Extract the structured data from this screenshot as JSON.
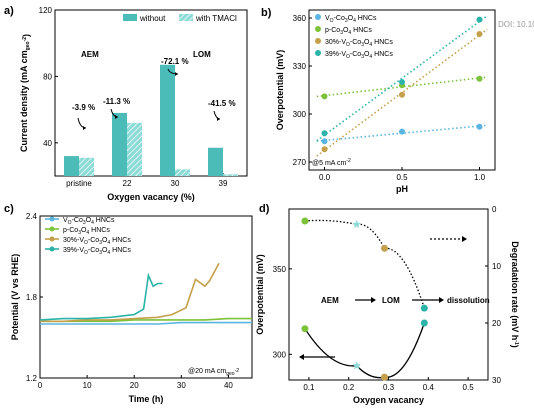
{
  "watermark": "DOI: 10.10",
  "colors": {
    "teal": "#4bbcb8",
    "teal_light": "#8ddbd6",
    "blue": "#5ab5e0",
    "green": "#7cc23a",
    "tan": "#c5a04a",
    "cyan": "#2bb3a8"
  },
  "chart_data": [
    {
      "panel": "a)",
      "type": "bar",
      "categories": [
        "pristine",
        "22",
        "30",
        "39"
      ],
      "series": [
        {
          "name": "without",
          "values": [
            32,
            58,
            87,
            37
          ]
        },
        {
          "name": "with TMACl",
          "values": [
            31,
            52,
            24,
            21
          ]
        }
      ],
      "annotations": [
        "-3.9 %",
        "-11.3 %",
        "-72.1 %",
        "-41.5 %"
      ],
      "region_labels": [
        "AEM",
        "LOM"
      ],
      "xlabel": "Oxygen vacancy (%)",
      "ylabel": "Current density (mA cm",
      "ylabel_sub": "geo",
      "ylabel_sup": "-2",
      "ylabel_end": ")",
      "ylim": [
        20,
        120
      ],
      "yticks": [
        40,
        80,
        120
      ],
      "legend": "top"
    },
    {
      "panel": "b)",
      "type": "scatter",
      "xlabel": "pH",
      "ylabel": "Overpotential (mV)",
      "xlim": [
        -0.1,
        1.1
      ],
      "ylim": [
        265,
        365
      ],
      "xticks": [
        "0.0",
        "0.5",
        "1.0"
      ],
      "yticks": [
        270,
        300,
        330,
        360
      ],
      "note": "@5 mA cm",
      "note_sup": "-2",
      "series": [
        {
          "name": "V",
          "name_sub": "O",
          "name_rest": "-Co",
          "name_sub2": "3",
          "name_rest2": "O",
          "name_sub3": "4",
          "name_rest3": " HNCs",
          "x": [
            0,
            0.5,
            1.0
          ],
          "y": [
            283,
            289,
            292
          ]
        },
        {
          "name": "p-Co",
          "name_sub": "3",
          "name_rest": "O",
          "name_sub2": "4",
          "name_rest2": " HNCs",
          "name_sub3": "",
          "name_rest3": "",
          "x": [
            0,
            0.5,
            1.0
          ],
          "y": [
            311,
            318,
            322
          ]
        },
        {
          "name": "30%-V",
          "name_sub": "O",
          "name_rest": "-Co",
          "name_sub2": "3",
          "name_rest2": "O",
          "name_sub3": "4",
          "name_rest3": " HNCs",
          "x": [
            0,
            0.5,
            1.0
          ],
          "y": [
            278,
            312,
            350
          ]
        },
        {
          "name": "39%-V",
          "name_sub": "O",
          "name_rest": "-Co",
          "name_sub2": "3",
          "name_rest2": "O",
          "name_sub3": "4",
          "name_rest3": " HNCs",
          "x": [
            0,
            0.5,
            1.0
          ],
          "y": [
            288,
            320,
            359
          ]
        }
      ]
    },
    {
      "panel": "c)",
      "type": "line",
      "xlabel": "Time (h)",
      "ylabel": "Potential (V vs RHE)",
      "xlim": [
        0,
        45
      ],
      "ylim": [
        1.2,
        2.4
      ],
      "xticks": [
        0,
        10,
        20,
        30,
        40
      ],
      "yticks": [
        "1.2",
        "1.8",
        "2.4"
      ],
      "note": "@20 mA cm",
      "note_sub": "geo",
      "note_sup": "-2",
      "series": [
        {
          "name": "V",
          "name_sub": "O",
          "name_rest": "-Co",
          "name_sub2": "3",
          "name_rest2": "O",
          "name_sub3": "4",
          "name_rest3": " HNCs",
          "x": [
            0,
            5,
            10,
            15,
            20,
            25,
            30,
            35,
            40,
            45
          ],
          "y": [
            1.6,
            1.6,
            1.6,
            1.6,
            1.6,
            1.6,
            1.61,
            1.61,
            1.61,
            1.61
          ]
        },
        {
          "name": "p-Co",
          "name_sub": "3",
          "name_rest": "O",
          "name_sub2": "4",
          "name_rest2": " HNCs",
          "name_sub3": "",
          "name_rest3": "",
          "x": [
            0,
            5,
            10,
            15,
            20,
            25,
            30,
            35,
            40,
            45
          ],
          "y": [
            1.62,
            1.62,
            1.62,
            1.62,
            1.63,
            1.63,
            1.63,
            1.63,
            1.64,
            1.64
          ]
        },
        {
          "name": "30%-V",
          "name_sub": "O",
          "name_rest": "-Co",
          "name_sub2": "3",
          "name_rest2": "O",
          "name_sub3": "4",
          "name_rest3": " HNCs",
          "x": [
            0,
            5,
            10,
            15,
            20,
            25,
            28,
            31,
            33,
            35,
            36,
            38
          ],
          "y": [
            1.62,
            1.62,
            1.63,
            1.63,
            1.64,
            1.65,
            1.67,
            1.72,
            1.93,
            1.88,
            1.92,
            2.05
          ]
        },
        {
          "name": "39%-V",
          "name_sub": "O",
          "name_rest": "-Co",
          "name_sub2": "3",
          "name_rest2": "O",
          "name_sub3": "4",
          "name_rest3": " HNCs",
          "x": [
            0,
            5,
            10,
            15,
            20,
            22,
            23,
            24,
            25,
            26
          ],
          "y": [
            1.63,
            1.64,
            1.64,
            1.65,
            1.67,
            1.71,
            1.96,
            1.88,
            1.9,
            1.9
          ]
        }
      ]
    },
    {
      "panel": "d)",
      "type": "scatter",
      "xlabel": "Oxygen vacancy",
      "ylabel": "Overpotential (mV)",
      "y2label": "Degradation rate (mV h",
      "y2label_sup": "-1",
      "y2label_end": ")",
      "xlim": [
        0.05,
        0.55
      ],
      "ylim": [
        285,
        385
      ],
      "y2lim": [
        30,
        0
      ],
      "xticks": [
        "0.1",
        "0.2",
        "0.3",
        "0.4",
        "0.5"
      ],
      "yticks": [
        300,
        350
      ],
      "y2ticks": [
        0,
        10,
        20,
        30
      ],
      "region_labels": [
        "AEM",
        "LOM",
        "dissolution"
      ],
      "overpotential": {
        "x": [
          0.09,
          0.22,
          0.29,
          0.39
        ],
        "y": [
          378,
          376,
          362,
          327
        ]
      },
      "degradation": {
        "x": [
          0.09,
          0.22,
          0.29,
          0.39
        ],
        "y": [
          21,
          27.5,
          29.5,
          20
        ]
      }
    }
  ]
}
